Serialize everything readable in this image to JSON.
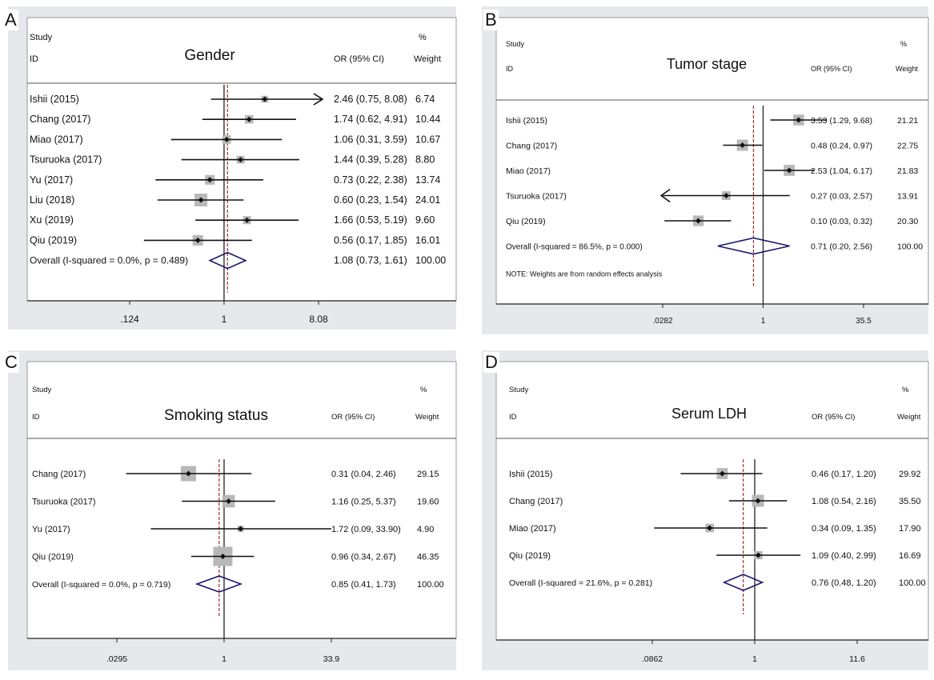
{
  "chart_data": [
    {
      "type": "forest",
      "panel_letter": "A",
      "title": "Gender",
      "header": {
        "study": "Study",
        "id": "ID",
        "or_label": "OR (95% CI)",
        "pct": "%",
        "weight": "Weight"
      },
      "scale": "log",
      "xlim": [
        0.124,
        8.08
      ],
      "xticks": [
        ".124",
        "1",
        "8.08"
      ],
      "xtick_values": [
        0.124,
        1,
        8.08
      ],
      "null_line": 1,
      "pooled_line": 1.08,
      "studies": [
        {
          "label": "Ishii (2015)",
          "or": 2.46,
          "lo": 0.75,
          "hi": 8.08,
          "weight": 6.74,
          "ci_text": "2.46 (0.75, 8.08)",
          "weight_text": "6.74",
          "arrow": "right"
        },
        {
          "label": "Chang (2017)",
          "or": 1.74,
          "lo": 0.62,
          "hi": 4.91,
          "weight": 10.44,
          "ci_text": "1.74 (0.62, 4.91)",
          "weight_text": "10.44"
        },
        {
          "label": "Miao (2017)",
          "or": 1.06,
          "lo": 0.31,
          "hi": 3.59,
          "weight": 10.67,
          "ci_text": "1.06 (0.31, 3.59)",
          "weight_text": "10.67"
        },
        {
          "label": "Tsuruoka (2017)",
          "or": 1.44,
          "lo": 0.39,
          "hi": 5.28,
          "weight": 8.8,
          "ci_text": "1.44 (0.39, 5.28)",
          "weight_text": "8.80"
        },
        {
          "label": "Yu (2017)",
          "or": 0.73,
          "lo": 0.22,
          "hi": 2.38,
          "weight": 13.74,
          "ci_text": "0.73 (0.22, 2.38)",
          "weight_text": "13.74"
        },
        {
          "label": "Liu (2018)",
          "or": 0.6,
          "lo": 0.23,
          "hi": 1.54,
          "weight": 24.01,
          "ci_text": "0.60 (0.23, 1.54)",
          "weight_text": "24.01"
        },
        {
          "label": "Xu (2019)",
          "or": 1.66,
          "lo": 0.53,
          "hi": 5.19,
          "weight": 9.6,
          "ci_text": "1.66 (0.53, 5.19)",
          "weight_text": "9.60"
        },
        {
          "label": "Qiu (2019)",
          "or": 0.56,
          "lo": 0.17,
          "hi": 1.85,
          "weight": 16.01,
          "ci_text": "0.56 (0.17, 1.85)",
          "weight_text": "16.01"
        }
      ],
      "overall": {
        "label": "Overall  (I-squared = 0.0%, p = 0.489)",
        "or": 1.08,
        "lo": 0.73,
        "hi": 1.61,
        "ci_text": "1.08 (0.73, 1.61)",
        "weight_text": "100.00"
      },
      "note": ""
    },
    {
      "type": "forest",
      "panel_letter": "B",
      "title": "Tumor stage",
      "header": {
        "study": "Study",
        "id": "ID",
        "or_label": "OR (95% CI)",
        "pct": "%",
        "weight": "Weight"
      },
      "scale": "log",
      "xlim": [
        0.0282,
        35.5
      ],
      "xticks": [
        ".0282",
        "1",
        "35.5"
      ],
      "xtick_values": [
        0.0282,
        1,
        35.5
      ],
      "null_line": 1,
      "pooled_line": 0.71,
      "studies": [
        {
          "label": "Ishii (2015)",
          "or": 3.53,
          "lo": 1.29,
          "hi": 9.68,
          "weight": 21.21,
          "ci_text": "3.53 (1.29, 9.68)",
          "weight_text": "21.21"
        },
        {
          "label": "Chang (2017)",
          "or": 0.48,
          "lo": 0.24,
          "hi": 0.97,
          "weight": 22.75,
          "ci_text": "0.48 (0.24, 0.97)",
          "weight_text": "22.75"
        },
        {
          "label": "Miao (2017)",
          "or": 2.53,
          "lo": 1.04,
          "hi": 6.17,
          "weight": 21.83,
          "ci_text": "2.53 (1.04, 6.17)",
          "weight_text": "21.83"
        },
        {
          "label": "Tsuruoka (2017)",
          "or": 0.27,
          "lo": 0.03,
          "hi": 2.57,
          "weight": 13.91,
          "ci_text": "0.27 (0.03, 2.57)",
          "weight_text": "13.91",
          "arrow": "left"
        },
        {
          "label": "Qiu (2019)",
          "or": 0.1,
          "lo": 0.03,
          "hi": 0.32,
          "weight": 20.3,
          "ci_text": "0.10 (0.03, 0.32)",
          "weight_text": "20.30"
        }
      ],
      "overall": {
        "label": "Overall  (I-squared = 86.5%, p = 0.000)",
        "or": 0.71,
        "lo": 0.2,
        "hi": 2.56,
        "ci_text": "0.71 (0.20, 2.56)",
        "weight_text": "100.00"
      },
      "note": "NOTE: Weights are from random effects analysis"
    },
    {
      "type": "forest",
      "panel_letter": "C",
      "title": "Smoking status",
      "header": {
        "study": "Study",
        "id": "ID",
        "or_label": "OR (95% CI)",
        "pct": "%",
        "weight": "Weight"
      },
      "scale": "log",
      "xlim": [
        0.0295,
        33.9
      ],
      "xticks": [
        ".0295",
        "1",
        "33.9"
      ],
      "xtick_values": [
        0.0295,
        1,
        33.9
      ],
      "null_line": 1,
      "pooled_line": 0.85,
      "studies": [
        {
          "label": "Chang (2017)",
          "or": 0.31,
          "lo": 0.04,
          "hi": 2.46,
          "weight": 29.15,
          "ci_text": "0.31 (0.04, 2.46)",
          "weight_text": "29.15"
        },
        {
          "label": "Tsuruoka (2017)",
          "or": 1.16,
          "lo": 0.25,
          "hi": 5.37,
          "weight": 19.6,
          "ci_text": "1.16 (0.25, 5.37)",
          "weight_text": "19.60"
        },
        {
          "label": "Yu (2017)",
          "or": 1.72,
          "lo": 0.09,
          "hi": 33.9,
          "weight": 4.9,
          "ci_text": "1.72 (0.09, 33.90)",
          "weight_text": "4.90"
        },
        {
          "label": "Qiu (2019)",
          "or": 0.96,
          "lo": 0.34,
          "hi": 2.67,
          "weight": 46.35,
          "ci_text": "0.96 (0.34, 2.67)",
          "weight_text": "46.35"
        }
      ],
      "overall": {
        "label": "Overall  (I-squared = 0.0%, p = 0.719)",
        "or": 0.85,
        "lo": 0.41,
        "hi": 1.73,
        "ci_text": "0.85 (0.41, 1.73)",
        "weight_text": "100.00"
      },
      "note": ""
    },
    {
      "type": "forest",
      "panel_letter": "D",
      "title": "Serum LDH",
      "header": {
        "study": "Study",
        "id": "ID",
        "or_label": "OR (95% CI)",
        "pct": "%",
        "weight": "Weight"
      },
      "scale": "log",
      "xlim": [
        0.0862,
        11.6
      ],
      "xticks": [
        ".0862",
        "1",
        "11.6"
      ],
      "xtick_values": [
        0.0862,
        1,
        11.6
      ],
      "null_line": 1,
      "pooled_line": 0.76,
      "studies": [
        {
          "label": "Ishii (2015)",
          "or": 0.46,
          "lo": 0.17,
          "hi": 1.2,
          "weight": 29.92,
          "ci_text": "0.46 (0.17, 1.20)",
          "weight_text": "29.92"
        },
        {
          "label": "Chang (2017)",
          "or": 1.08,
          "lo": 0.54,
          "hi": 2.16,
          "weight": 35.5,
          "ci_text": "1.08 (0.54, 2.16)",
          "weight_text": "35.50"
        },
        {
          "label": "Miao (2017)",
          "or": 0.34,
          "lo": 0.09,
          "hi": 1.35,
          "weight": 17.9,
          "ci_text": "0.34 (0.09, 1.35)",
          "weight_text": "17.90"
        },
        {
          "label": "Qiu (2019)",
          "or": 1.09,
          "lo": 0.4,
          "hi": 2.99,
          "weight": 16.69,
          "ci_text": "1.09 (0.40, 2.99)",
          "weight_text": "16.69"
        }
      ],
      "overall": {
        "label": "Overall  (I-squared = 21.6%, p = 0.281)",
        "or": 0.76,
        "lo": 0.48,
        "hi": 1.2,
        "ci_text": "0.76 (0.48, 1.20)",
        "weight_text": "100.00"
      },
      "note": ""
    }
  ],
  "colors": {
    "panel_bg": "#e6e8eb",
    "plot_bg": "#ffffff",
    "square": "#b8b8b8",
    "diamond": "#1a1a6e",
    "pooled_line": "#a0302f",
    "axis": "#222222"
  }
}
